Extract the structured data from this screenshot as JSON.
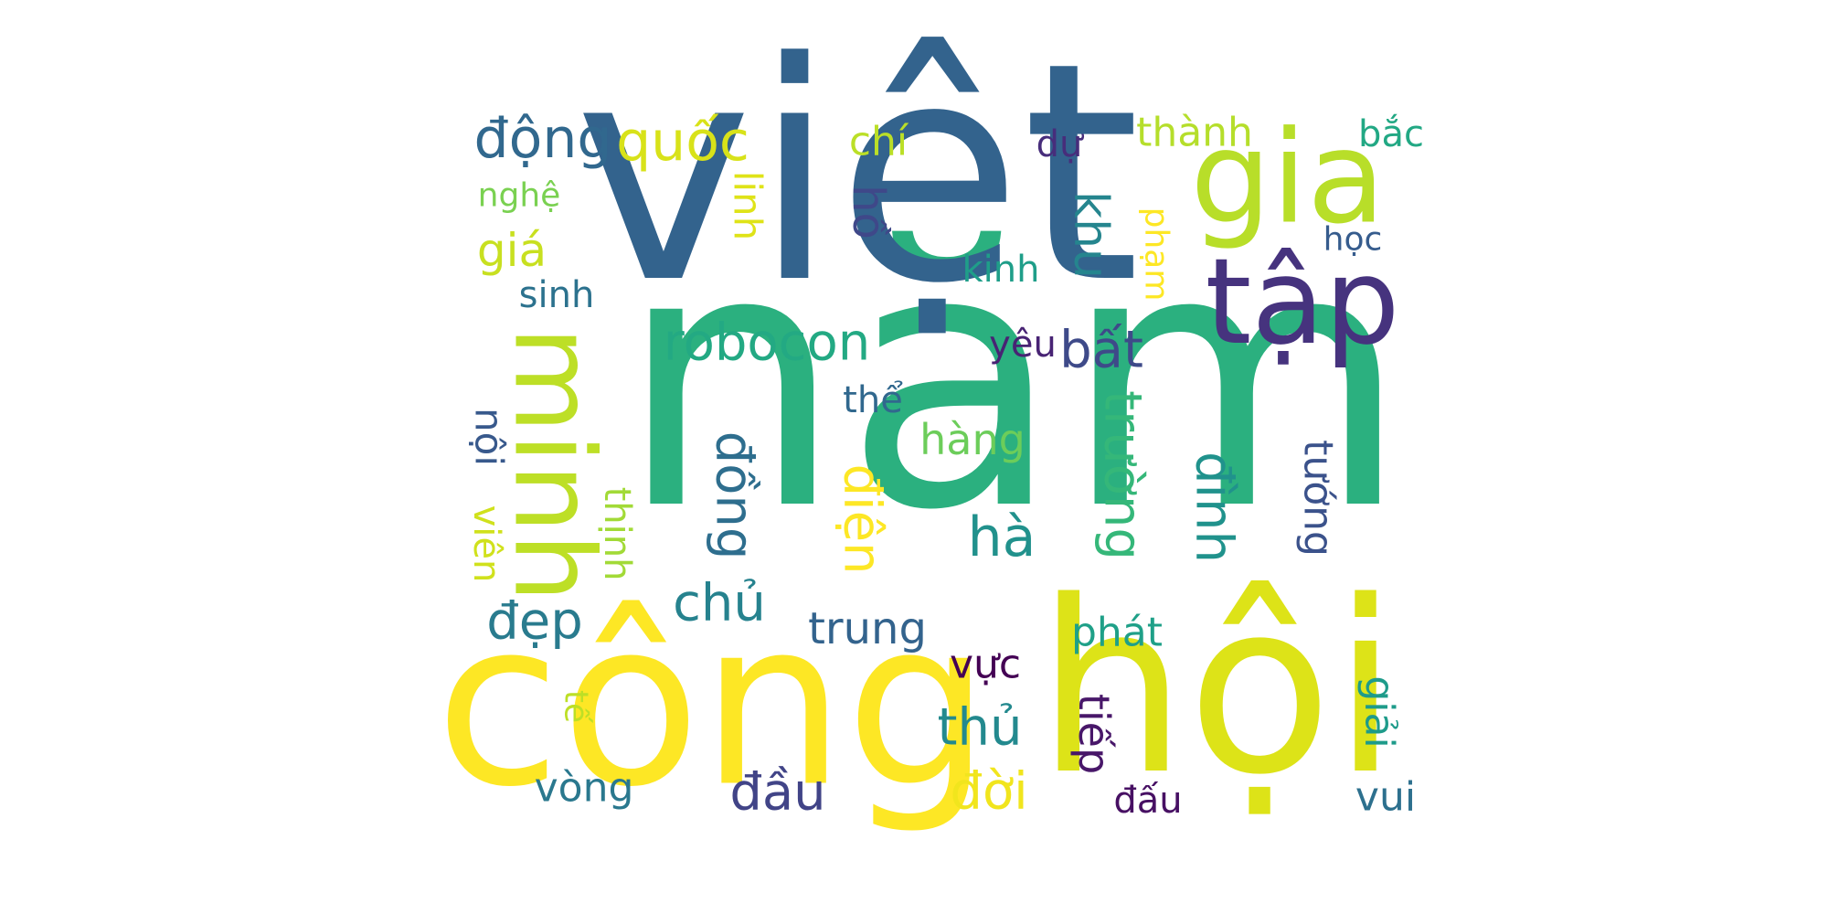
{
  "words": [
    {
      "text": "năm",
      "color": "#2bb07f",
      "rotate": false
    },
    {
      "text": "việt",
      "color": "#33638d",
      "rotate": false
    },
    {
      "text": "công",
      "color": "#fde725",
      "rotate": false
    },
    {
      "text": "hội",
      "color": "#dde318",
      "rotate": false
    },
    {
      "text": "minh",
      "color": "#bddf26",
      "rotate": true
    },
    {
      "text": "gia",
      "color": "#b8de29",
      "rotate": false
    },
    {
      "text": "tập",
      "color": "#46337e",
      "rotate": false
    },
    {
      "text": "động",
      "color": "#31688e",
      "rotate": false
    },
    {
      "text": "quốc",
      "color": "#d8e219",
      "rotate": false
    },
    {
      "text": "robocon",
      "color": "#23a983",
      "rotate": false
    },
    {
      "text": "bất",
      "color": "#3e4a89",
      "rotate": false
    },
    {
      "text": "khu",
      "color": "#25858e",
      "rotate": true
    },
    {
      "text": "hồ",
      "color": "#3f4889",
      "rotate": true
    },
    {
      "text": "giá",
      "color": "#c8e020",
      "rotate": false
    },
    {
      "text": "chí",
      "color": "#bbdf27",
      "rotate": false
    },
    {
      "text": "linh",
      "color": "#dfe318",
      "rotate": true
    },
    {
      "text": "dự",
      "color": "#472d7b",
      "rotate": false
    },
    {
      "text": "thành",
      "color": "#b5de2b",
      "rotate": false
    },
    {
      "text": "bắc",
      "color": "#22a884",
      "rotate": false
    },
    {
      "text": "nghệ",
      "color": "#7ad151",
      "rotate": false
    },
    {
      "text": "học",
      "color": "#365c8d",
      "rotate": false
    },
    {
      "text": "phạm",
      "color": "#fde725",
      "rotate": true
    },
    {
      "text": "kinh",
      "color": "#1f9e89",
      "rotate": false
    },
    {
      "text": "sinh",
      "color": "#2c728e",
      "rotate": false
    },
    {
      "text": "yêu",
      "color": "#482374",
      "rotate": false
    },
    {
      "text": "thể",
      "color": "#31688e",
      "rotate": false
    },
    {
      "text": "hàng",
      "color": "#6ccd5a",
      "rotate": false
    },
    {
      "text": "nội",
      "color": "#38598c",
      "rotate": true
    },
    {
      "text": "viên",
      "color": "#d0e11c",
      "rotate": true
    },
    {
      "text": "thịnh",
      "color": "#a2da37",
      "rotate": true
    },
    {
      "text": "đồng",
      "color": "#2e6e8e",
      "rotate": true
    },
    {
      "text": "điện",
      "color": "#fde725",
      "rotate": true
    },
    {
      "text": "trường",
      "color": "#35b779",
      "rotate": true
    },
    {
      "text": "đình",
      "color": "#20928c",
      "rotate": true
    },
    {
      "text": "tướng",
      "color": "#3b528b",
      "rotate": true
    },
    {
      "text": "hà",
      "color": "#21918c",
      "rotate": false
    },
    {
      "text": "chủ",
      "color": "#26828e",
      "rotate": false
    },
    {
      "text": "đẹp",
      "color": "#297b8e",
      "rotate": false
    },
    {
      "text": "trung",
      "color": "#33638d",
      "rotate": false
    },
    {
      "text": "phát",
      "color": "#1fa088",
      "rotate": false
    },
    {
      "text": "vực",
      "color": "#440154",
      "rotate": false
    },
    {
      "text": "thủ",
      "color": "#23898e",
      "rotate": false
    },
    {
      "text": "tế",
      "color": "#bddf26",
      "rotate": true
    },
    {
      "text": "tiếp",
      "color": "#481769",
      "rotate": true
    },
    {
      "text": "giải",
      "color": "#1e9b8a",
      "rotate": true
    },
    {
      "text": "vòng",
      "color": "#2a788e",
      "rotate": false
    },
    {
      "text": "đầu",
      "color": "#414487",
      "rotate": false
    },
    {
      "text": "đời",
      "color": "#f1e51d",
      "rotate": false
    },
    {
      "text": "đấu",
      "color": "#471063",
      "rotate": false
    },
    {
      "text": "vui",
      "color": "#2d708e",
      "rotate": false
    }
  ]
}
